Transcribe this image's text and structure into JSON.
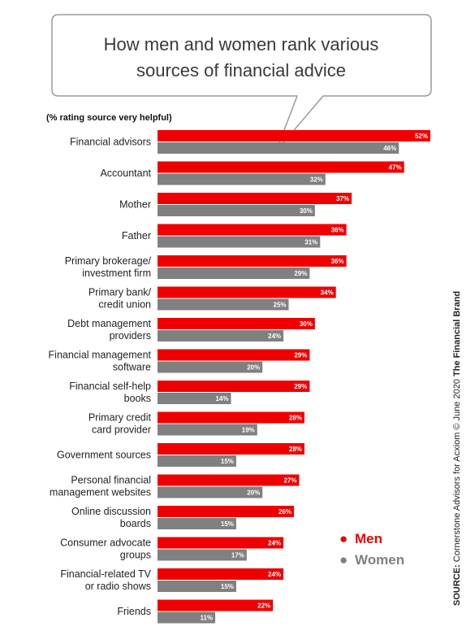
{
  "chart_data": {
    "type": "bar",
    "orientation": "horizontal",
    "title": "How men and women rank various sources of financial advice",
    "subtitle": "(% rating source very helpful)",
    "categories": [
      "Financial advisors",
      "Accountant",
      "Mother",
      "Father",
      "Primary brokerage/ investment firm",
      "Primary bank/ credit union",
      "Debt management providers",
      "Financial management software",
      "Financial self-help books",
      "Primary credit card provider",
      "Government sources",
      "Personal financial management websites",
      "Online discussion boards",
      "Consumer advocate groups",
      "Financial-related TV or radio shows",
      "Friends"
    ],
    "category_lines": [
      [
        "Financial advisors"
      ],
      [
        "Accountant"
      ],
      [
        "Mother"
      ],
      [
        "Father"
      ],
      [
        "Primary brokerage/",
        "investment firm"
      ],
      [
        "Primary bank/",
        "credit union"
      ],
      [
        "Debt management",
        "providers"
      ],
      [
        "Financial management",
        "software"
      ],
      [
        "Financial self-help",
        "books"
      ],
      [
        "Primary credit",
        "card provider"
      ],
      [
        "Government sources"
      ],
      [
        "Personal financial",
        "management websites"
      ],
      [
        "Online discussion",
        "boards"
      ],
      [
        "Consumer advocate",
        "groups"
      ],
      [
        "Financial-related TV",
        "or radio shows"
      ],
      [
        "Friends"
      ]
    ],
    "series": [
      {
        "name": "Men",
        "color": "#ee0000",
        "values": [
          52,
          47,
          37,
          36,
          36,
          34,
          30,
          29,
          29,
          28,
          28,
          27,
          26,
          24,
          24,
          22
        ]
      },
      {
        "name": "Women",
        "color": "#808080",
        "values": [
          46,
          32,
          30,
          31,
          29,
          25,
          24,
          20,
          14,
          19,
          15,
          20,
          15,
          17,
          15,
          11
        ]
      }
    ],
    "value_suffix": "%",
    "xlim": [
      0,
      52
    ],
    "grid": false,
    "legend": {
      "position": "bottom-right",
      "marker": "●"
    }
  },
  "source": {
    "prefix": "SOURCE:",
    "text": " Cornerstone Advisors for Acxiom © June 2020 ",
    "brand": "The Financial Brand"
  }
}
